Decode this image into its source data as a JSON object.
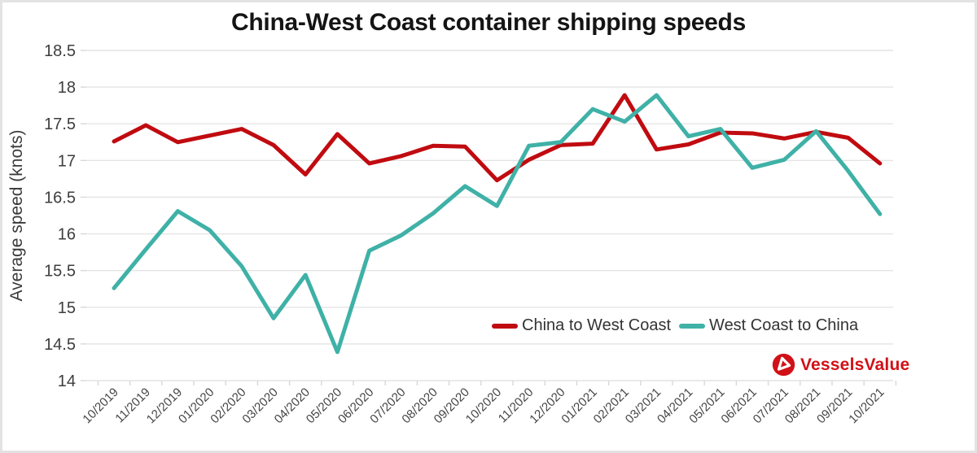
{
  "chart_data": {
    "type": "line",
    "title": "China-West Coast container shipping speeds",
    "xlabel": "",
    "ylabel": "Average speed (knots)",
    "ylim": [
      14,
      18.5
    ],
    "ytick_step": 0.5,
    "y_tick_labels": [
      "14",
      "14.5",
      "15",
      "15.5",
      "16",
      "16.5",
      "17",
      "17.5",
      "18",
      "18.5"
    ],
    "grid": true,
    "legend_position": "inside-bottom-right",
    "categories": [
      "10/2019",
      "11/2019",
      "12/2019",
      "01/2020",
      "02/2020",
      "03/2020",
      "04/2020",
      "05/2020",
      "06/2020",
      "07/2020",
      "08/2020",
      "09/2020",
      "10/2020",
      "11/2020",
      "12/2020",
      "01/2021",
      "02/2021",
      "03/2021",
      "04/2021",
      "05/2021",
      "06/2021",
      "07/2021",
      "08/2021",
      "09/2021",
      "10/2021"
    ],
    "series": [
      {
        "name": "China to West Coast",
        "color": "#c00b10",
        "values": [
          17.26,
          17.48,
          17.25,
          17.34,
          17.43,
          17.21,
          16.81,
          17.36,
          16.96,
          17.06,
          17.2,
          17.19,
          16.73,
          17.01,
          17.21,
          17.23,
          17.89,
          17.15,
          17.22,
          17.38,
          17.37,
          17.3,
          17.39,
          17.31,
          16.96
        ]
      },
      {
        "name": "West Coast to China",
        "color": "#3fb1a7",
        "values": [
          15.26,
          15.79,
          16.31,
          16.05,
          15.56,
          14.85,
          15.44,
          14.39,
          15.77,
          15.98,
          16.28,
          16.65,
          16.38,
          17.2,
          17.25,
          17.7,
          17.53,
          17.89,
          17.33,
          17.43,
          16.9,
          17.01,
          17.4,
          16.86,
          16.27
        ]
      }
    ]
  },
  "branding": {
    "logo_text": "VesselsValue",
    "logo_color": "#d11117"
  }
}
